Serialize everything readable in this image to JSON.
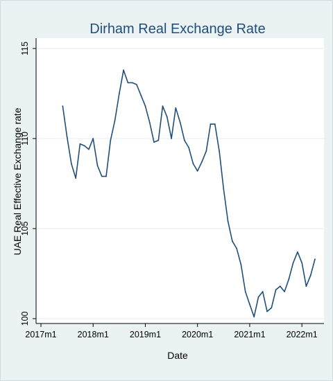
{
  "chart_data": {
    "type": "line",
    "title": "Dirham Real Exchange Rate",
    "xlabel": "Date",
    "ylabel": "UAE Real Effective Exchange rate",
    "xlim": [
      2017.0,
      2022.33
    ],
    "ylim": [
      100,
      115
    ],
    "y_ticks": [
      100,
      105,
      110,
      115
    ],
    "x_ticks": [
      {
        "value": 2017,
        "label": "2017m1"
      },
      {
        "value": 2018,
        "label": "2018m1"
      },
      {
        "value": 2019,
        "label": "2019m1"
      },
      {
        "value": 2020,
        "label": "2020m1"
      },
      {
        "value": 2021,
        "label": "2021m1"
      },
      {
        "value": 2022,
        "label": "2022m1"
      }
    ],
    "grid": "horizontal",
    "colors": {
      "line": "#1f4e79",
      "plot_bg": "#ffffff",
      "outer_bg": "#eaf2f3",
      "title": "#1f4e79",
      "grid": "#e6eef0"
    },
    "series": [
      {
        "x": [
          2017.417,
          2017.5,
          2017.583,
          2017.667,
          2017.75,
          2017.833,
          2017.917,
          2018.0,
          2018.083,
          2018.167,
          2018.25,
          2018.333,
          2018.417,
          2018.5,
          2018.583,
          2018.667,
          2018.75,
          2018.833,
          2018.917,
          2019.0,
          2019.083,
          2019.167,
          2019.25,
          2019.333,
          2019.417,
          2019.5,
          2019.583,
          2019.667,
          2019.75,
          2019.833,
          2019.917,
          2020.0,
          2020.083,
          2020.167,
          2020.25,
          2020.333,
          2020.417,
          2020.5,
          2020.583,
          2020.667,
          2020.75,
          2020.833,
          2020.917,
          2021.0,
          2021.083,
          2021.167,
          2021.25,
          2021.333,
          2021.417,
          2021.5,
          2021.583,
          2021.667,
          2021.75,
          2021.833,
          2021.917,
          2022.0,
          2022.083,
          2022.167,
          2022.25
        ],
        "values": [
          111.8,
          110.1,
          108.6,
          107.8,
          109.7,
          109.6,
          109.4,
          110.0,
          108.5,
          107.9,
          107.9,
          109.9,
          111.0,
          112.5,
          113.8,
          113.1,
          113.1,
          113.0,
          112.4,
          111.8,
          110.9,
          109.8,
          109.9,
          111.8,
          111.2,
          110.0,
          111.7,
          110.9,
          109.9,
          109.5,
          108.6,
          108.2,
          108.7,
          109.3,
          110.8,
          110.8,
          109.3,
          107.2,
          105.4,
          104.3,
          103.9,
          103.0,
          101.5,
          100.8,
          100.1,
          101.2,
          101.5,
          100.4,
          100.6,
          101.6,
          101.8,
          101.5,
          102.2,
          103.1,
          103.7,
          103.1,
          101.8,
          102.4,
          103.3
        ]
      }
    ]
  }
}
